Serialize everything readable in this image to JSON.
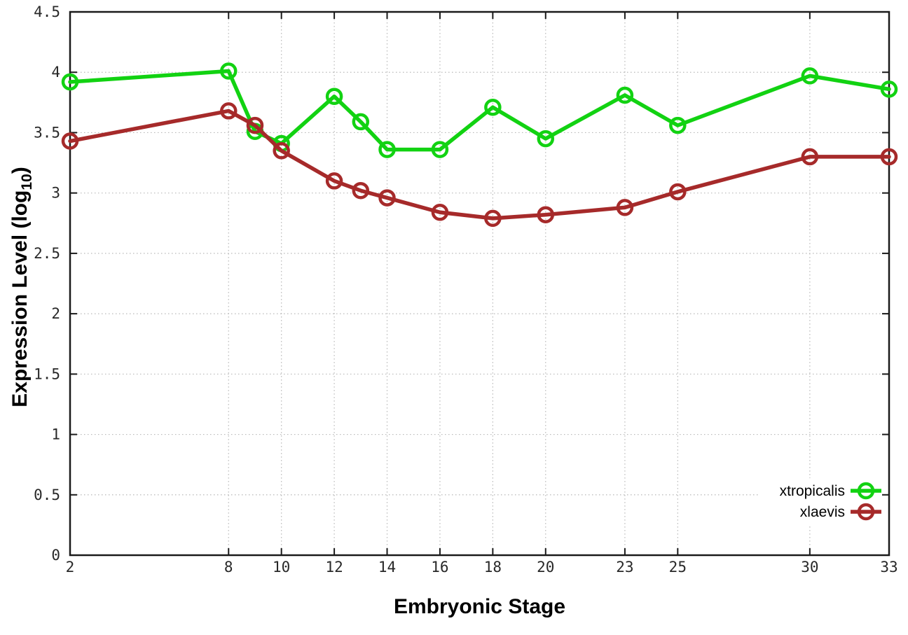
{
  "chart_data": {
    "type": "line",
    "title": "",
    "xlabel": "Embryonic Stage",
    "ylabel": {
      "prefix": "Expression Level (log",
      "sub": "10",
      "suffix": ")"
    },
    "xlim": [
      2,
      33
    ],
    "ylim": [
      0,
      4.5
    ],
    "grid": "dotted",
    "x": [
      2,
      8,
      9,
      10,
      12,
      13,
      14,
      16,
      18,
      20,
      23,
      25,
      30,
      33
    ],
    "series": [
      {
        "name": "xtropicalis",
        "color": "#12d212",
        "marker": "open-circle",
        "values": [
          3.92,
          4.01,
          3.51,
          3.41,
          3.8,
          3.59,
          3.36,
          3.36,
          3.71,
          3.45,
          3.81,
          3.56,
          3.97,
          3.86
        ]
      },
      {
        "name": "xlaevis",
        "color": "#a62a2a",
        "marker": "open-circle",
        "values": [
          3.43,
          3.68,
          3.56,
          3.35,
          3.1,
          3.02,
          2.96,
          2.84,
          2.79,
          2.82,
          2.88,
          3.01,
          3.3,
          3.3
        ]
      }
    ],
    "xticks": [
      {
        "value": 2,
        "label": "2"
      },
      {
        "value": 8,
        "label": "8"
      },
      {
        "value": 10,
        "label": "10"
      },
      {
        "value": 12,
        "label": "12"
      },
      {
        "value": 14,
        "label": "14"
      },
      {
        "value": 16,
        "label": "16"
      },
      {
        "value": 18,
        "label": "18"
      },
      {
        "value": 20,
        "label": "20"
      },
      {
        "value": 23,
        "label": "23"
      },
      {
        "value": 25,
        "label": "25"
      },
      {
        "value": 30,
        "label": "30"
      },
      {
        "value": 33,
        "label": "33"
      }
    ],
    "yticks": [
      {
        "value": 0,
        "label": "0"
      },
      {
        "value": 0.5,
        "label": "0.5"
      },
      {
        "value": 1,
        "label": "1"
      },
      {
        "value": 1.5,
        "label": "1.5"
      },
      {
        "value": 2,
        "label": "2"
      },
      {
        "value": 2.5,
        "label": "2.5"
      },
      {
        "value": 3,
        "label": "3"
      },
      {
        "value": 3.5,
        "label": "3.5"
      },
      {
        "value": 4,
        "label": "4"
      },
      {
        "value": 4.5,
        "label": "4.5"
      }
    ],
    "legend": {
      "position": "bottom-right",
      "entries": [
        {
          "label": "xtropicalis",
          "series": "xtropicalis"
        },
        {
          "label": "xlaevis",
          "series": "xlaevis"
        }
      ]
    },
    "colors": {
      "background": "#ffffff",
      "border": "#1a1a1a",
      "grid": "#b8b8b8",
      "tick_text": "#282828",
      "label_text": "#000000"
    }
  }
}
